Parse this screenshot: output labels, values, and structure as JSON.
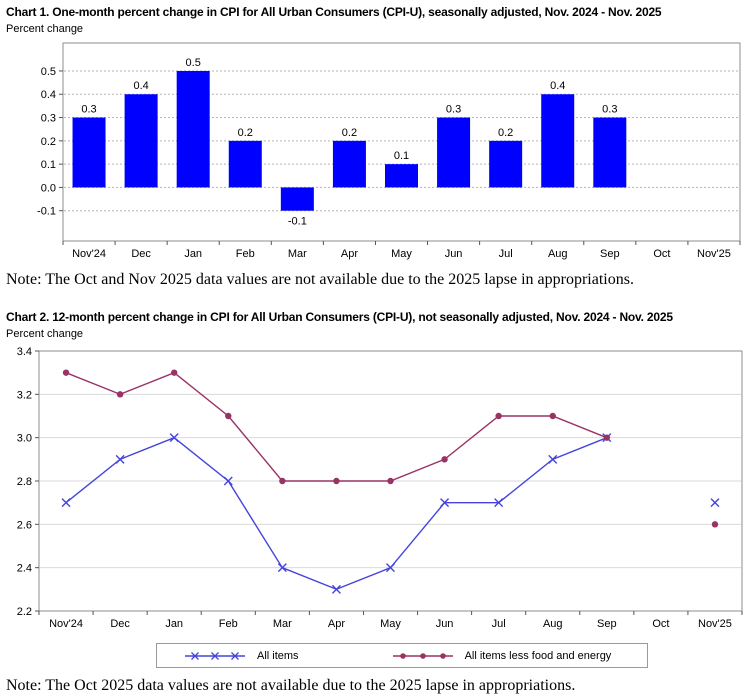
{
  "chart_data": [
    {
      "id": "chart1",
      "type": "bar",
      "title": "Chart 1. One-month percent change in CPI for All Urban Consumers (CPI-U), seasonally adjusted, Nov. 2024 - Nov. 2025",
      "ylabel": "Percent change",
      "note": "Note: The Oct and Nov 2025 data values are not available due to the 2025 lapse in appropriations.",
      "categories": [
        "Nov'24",
        "Dec",
        "Jan",
        "Feb",
        "Mar",
        "Apr",
        "May",
        "Jun",
        "Jul",
        "Aug",
        "Sep",
        "Oct",
        "Nov'25"
      ],
      "values": [
        0.3,
        0.4,
        0.5,
        0.2,
        -0.1,
        0.2,
        0.1,
        0.3,
        0.2,
        0.4,
        0.3,
        null,
        null
      ],
      "yticks": [
        0.5,
        0.4,
        0.3,
        0.2,
        0.1,
        0.0,
        -0.1
      ],
      "ylim": [
        -0.23,
        0.62
      ],
      "bar_color": "#0000ff",
      "grid": true,
      "grid_style": "dotted",
      "grid_color": "#b3b3b3",
      "legend_position": "none"
    },
    {
      "id": "chart2",
      "type": "line",
      "title": "Chart 2. 12-month percent change in CPI for All Urban Consumers (CPI-U), not seasonally adjusted, Nov. 2024 - Nov. 2025",
      "ylabel": "Percent change",
      "note": "Note: The Oct 2025 data values are not available due to the 2025 lapse in appropriations.",
      "categories": [
        "Nov'24",
        "Dec",
        "Jan",
        "Feb",
        "Mar",
        "Apr",
        "May",
        "Jun",
        "Jul",
        "Aug",
        "Sep",
        "Oct",
        "Nov'25"
      ],
      "series": [
        {
          "name": "All items",
          "color": "#4444dd",
          "marker": "x",
          "values": [
            2.7,
            2.9,
            3.0,
            2.8,
            2.4,
            2.3,
            2.4,
            2.7,
            2.7,
            2.9,
            3.0,
            null,
            2.7
          ]
        },
        {
          "name": "All items less food and energy",
          "color": "#993366",
          "marker": "circle",
          "values": [
            3.3,
            3.2,
            3.3,
            3.1,
            2.8,
            2.8,
            2.8,
            2.9,
            3.1,
            3.1,
            3.0,
            null,
            2.6
          ]
        }
      ],
      "yticks": [
        3.4,
        3.2,
        3.0,
        2.8,
        2.6,
        2.4,
        2.2
      ],
      "ylim": [
        2.2,
        3.4
      ],
      "grid": true,
      "grid_style": "solid",
      "grid_color": "#d9d9d9",
      "legend_position": "bottom"
    }
  ]
}
